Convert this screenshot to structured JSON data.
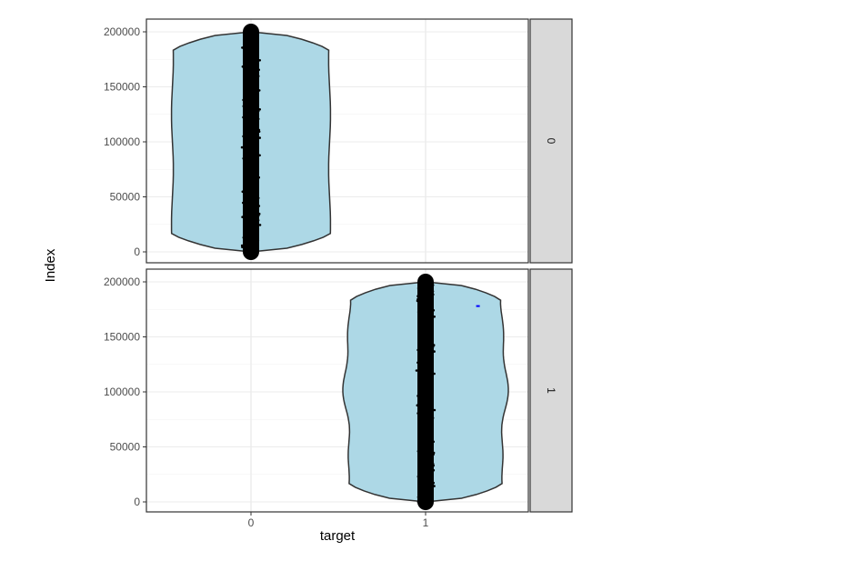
{
  "chart_data": {
    "type": "violin",
    "xlabel": "target",
    "ylabel": "Index",
    "x_categories": [
      "0",
      "1"
    ],
    "y_ticks": [
      0,
      50000,
      100000,
      150000,
      200000
    ],
    "y_tick_labels": [
      "0",
      "50000",
      "100000",
      "150000",
      "200000"
    ],
    "ylim": [
      -10000,
      210000
    ],
    "grid": true,
    "facets": [
      {
        "strip_label": "0",
        "x_category": "0",
        "y_range": [
          0,
          200000
        ],
        "max_half_width": 0.45,
        "fill": "#add8e6",
        "outline": "#333333",
        "points_color": "#000000"
      },
      {
        "strip_label": "1",
        "x_category": "1",
        "y_range": [
          0,
          200000
        ],
        "max_half_width": 0.45,
        "fill": "#add8e6",
        "outline": "#333333",
        "points_color": "#000000",
        "outlier": {
          "x_offset": 0.3,
          "y": 178000,
          "color": "#0000ff"
        }
      }
    ]
  }
}
